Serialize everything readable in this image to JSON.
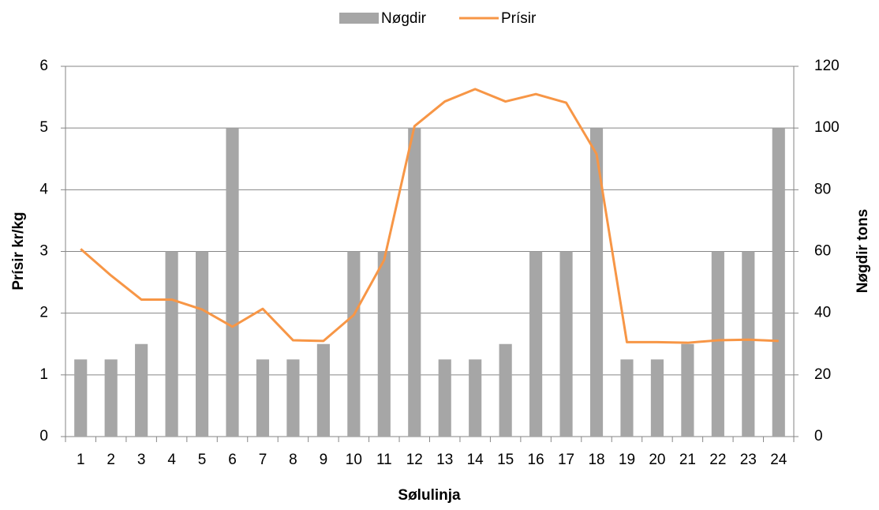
{
  "chart_data": {
    "type": "bar_line",
    "categories": [
      "1",
      "2",
      "3",
      "4",
      "5",
      "6",
      "7",
      "8",
      "9",
      "10",
      "11",
      "12",
      "13",
      "14",
      "15",
      "16",
      "17",
      "18",
      "19",
      "20",
      "21",
      "22",
      "23",
      "24"
    ],
    "series": [
      {
        "name": "Nøgdir",
        "type": "bar",
        "axis": "y2",
        "color": "#a6a6a6",
        "values": [
          25,
          25,
          30,
          60,
          60,
          100,
          25,
          25,
          30,
          60,
          60,
          100,
          25,
          25,
          30,
          60,
          60,
          100,
          25,
          25,
          30,
          60,
          60,
          100
        ]
      },
      {
        "name": "Prísir",
        "type": "line",
        "axis": "y",
        "color": "#f79646",
        "values": [
          3.04,
          2.61,
          2.22,
          2.22,
          2.06,
          1.78,
          2.07,
          1.56,
          1.55,
          1.97,
          2.86,
          5.03,
          5.43,
          5.63,
          5.43,
          5.55,
          5.41,
          4.58,
          1.53,
          1.53,
          1.52,
          1.56,
          1.57,
          1.55
        ]
      }
    ],
    "xlabel": "Sølulinja",
    "ylabel": "Prísir kr/kg",
    "y2label": "Nøgdir tons",
    "ylim": [
      0,
      6
    ],
    "yticks": [
      0,
      1,
      2,
      3,
      4,
      5,
      6
    ],
    "y2lim": [
      0,
      120
    ],
    "y2ticks": [
      0,
      20,
      40,
      60,
      80,
      100,
      120
    ],
    "grid": true,
    "legend": "top"
  }
}
